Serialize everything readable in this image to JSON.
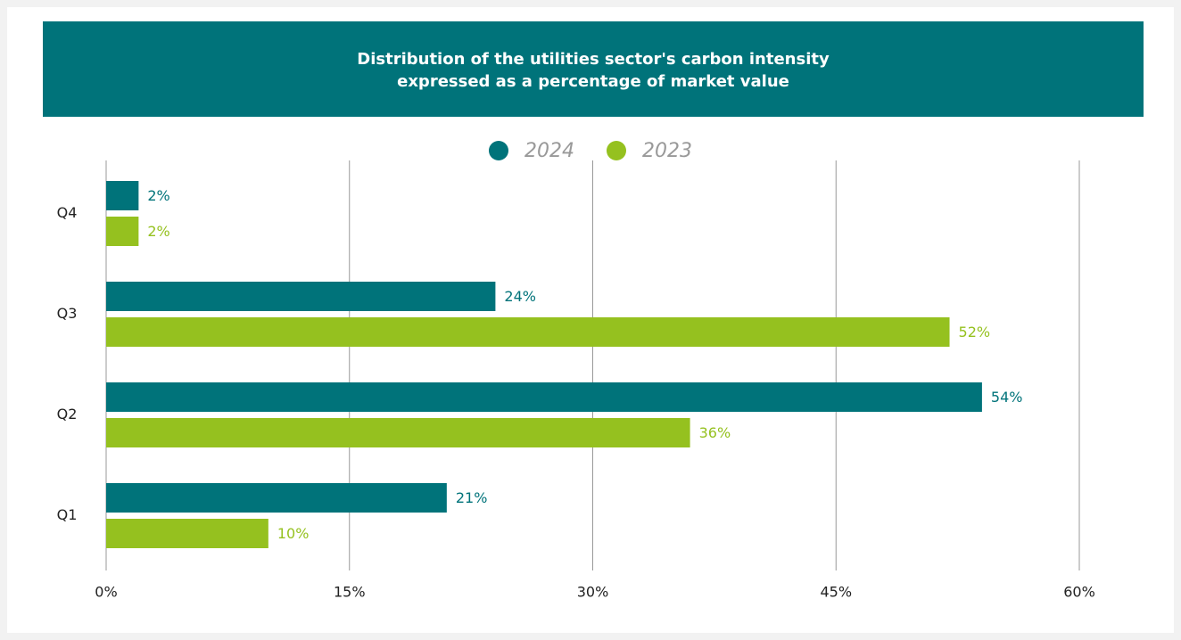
{
  "chart_data": {
    "type": "hbar",
    "title": "Distribution of the utilities sector's carbon intensity",
    "subtitle": "expressed as a percentage of market value",
    "categories": [
      "Q4",
      "Q3",
      "Q2",
      "Q1"
    ],
    "series": [
      {
        "name": "2024",
        "color": "#00737a",
        "values": [
          2,
          24,
          54,
          21
        ],
        "value_labels": [
          "2%",
          "24%",
          "54%",
          "21%"
        ]
      },
      {
        "name": "2023",
        "color": "#95c11f",
        "values": [
          2,
          52,
          36,
          10
        ],
        "value_labels": [
          "2%",
          "52%",
          "36%",
          "10%"
        ]
      }
    ],
    "xlim": [
      0,
      60
    ],
    "xticks": [
      {
        "value": 0,
        "label": "0%"
      },
      {
        "value": 15,
        "label": "15%"
      },
      {
        "value": 30,
        "label": "30%"
      },
      {
        "value": 45,
        "label": "45%"
      },
      {
        "value": 60,
        "label": "60%"
      }
    ],
    "grid": true,
    "legend": "top"
  }
}
